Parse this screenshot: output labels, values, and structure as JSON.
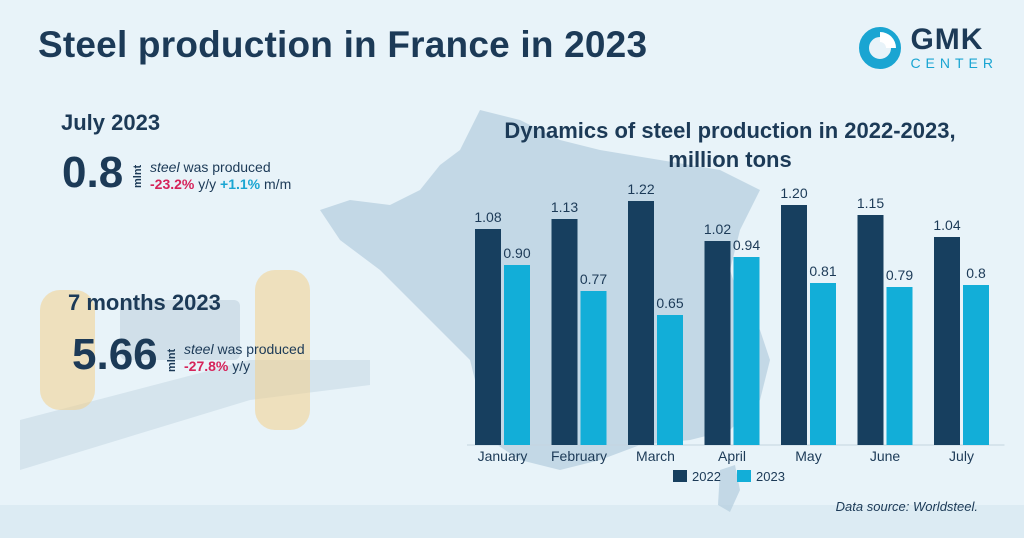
{
  "header": {
    "title": "Steel production in France in 2023"
  },
  "logo": {
    "main": "GMK",
    "sub": "CENTER"
  },
  "stats": [
    {
      "period": "July 2023",
      "value": "0.8",
      "unit": "mlnt",
      "text_emph": "steel",
      "text_rest": " was produced",
      "yy": "-23.2%",
      "yy_suffix": " y/y ",
      "mm": "+1.1%",
      "mm_suffix": " m/m"
    },
    {
      "period": "7 months 2023",
      "value": "5.66",
      "unit": "mlnt",
      "text_emph": "steel",
      "text_rest": " was produced",
      "yy": "-27.8%",
      "yy_suffix": " y/y"
    }
  ],
  "source": "Data source:  Worldsteel.",
  "colors": {
    "series_2022": "#173f5f",
    "series_2023": "#12aed8",
    "title": "#1c3a57",
    "negative": "#d6235a",
    "positive": "#1aa5d2"
  },
  "chart_data": {
    "type": "bar",
    "title": "Dynamics of steel production in 2022-2023, million tons",
    "title_line1": "Dynamics of steel production in 2022-2023,",
    "title_line2": "million tons",
    "categories": [
      "January",
      "February",
      "March",
      "April",
      "May",
      "June",
      "July"
    ],
    "series": [
      {
        "name": "2022",
        "values": [
          1.08,
          1.13,
          1.22,
          1.02,
          1.2,
          1.15,
          1.04
        ],
        "labels": [
          "1.08",
          "1.13",
          "1.22",
          "1.02",
          "1.20",
          "1.15",
          "1.04"
        ]
      },
      {
        "name": "2023",
        "values": [
          0.9,
          0.77,
          0.65,
          0.94,
          0.81,
          0.79,
          0.8
        ],
        "labels": [
          "0.90",
          "0.77",
          "0.65",
          "0.94",
          "0.81",
          "0.79",
          "0.8"
        ]
      }
    ],
    "ylim": [
      0,
      1.35
    ],
    "grid": false,
    "legend": "bottom-center"
  }
}
